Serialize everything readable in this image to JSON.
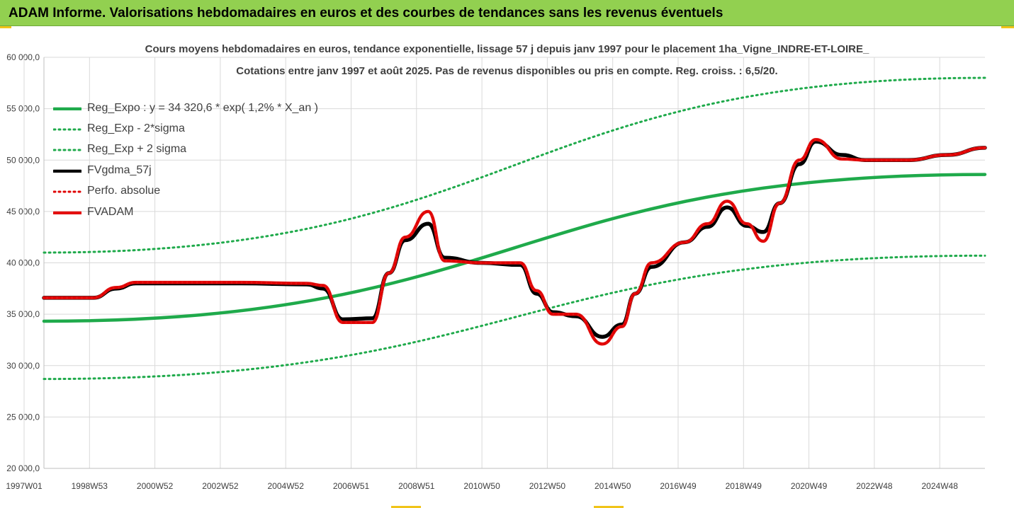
{
  "header": {
    "title": "ADAM Informe. Valorisations hebdomadaires en euros et des courbes de tendances sans les revenus éventuels"
  },
  "colors": {
    "header_bg": "#92d050",
    "trend": "#1faa4b",
    "trend_band": "#1faa4b",
    "smoothed": "#000000",
    "perf": "#e00000",
    "fvadam": "#e31010",
    "grid": "#d9d9d9"
  },
  "chart_data": {
    "type": "line",
    "title": "Cours moyens hebdomadaires en euros, tendance exponentielle, lissage 57 j depuis janv 1997 pour le placement 1ha_Vigne_INDRE-ET-LOIRE_",
    "subtitle": "Cotations entre janv 1997 et août 2025.  Pas de revenus disponibles ou pris en compte. Reg. croiss. : 6,5/20.",
    "xlabel": "",
    "ylabel": "",
    "ylim": [
      20000,
      60000
    ],
    "yticks": [
      "60 000,0",
      "55 000,0",
      "50 000,0",
      "45 000,0",
      "40 000,0",
      "35 000,0",
      "30 000,0",
      "25 000,0",
      "20 000,0"
    ],
    "xticks": [
      "1997W01",
      "1998W53",
      "2000W52",
      "2002W52",
      "2004W52",
      "2006W51",
      "2008W51",
      "2010W50",
      "2012W50",
      "2014W50",
      "2016W49",
      "2018W49",
      "2020W49",
      "2022W48",
      "2024W48"
    ],
    "xlim": [
      1997.0,
      2025.65
    ],
    "grid": true,
    "legend_position": "top-left",
    "series": [
      {
        "name": "Reg_Expo : y = 34 320,6 * exp( 1,2% *  X_an )",
        "style": "solid-thick",
        "color": "#1faa4b",
        "x": [
          1997.0,
          2025.65
        ],
        "y": [
          34320,
          48600
        ]
      },
      {
        "name": "Reg_Exp - 2*sigma",
        "style": "dotted",
        "color": "#1faa4b",
        "x": [
          1997.0,
          2025.65
        ],
        "y": [
          28700,
          40700
        ]
      },
      {
        "name": "Reg_Exp + 2 sigma",
        "style": "dotted",
        "color": "#1faa4b",
        "x": [
          1997.0,
          2025.65
        ],
        "y": [
          41000,
          58000
        ]
      },
      {
        "name": "FVgdma_57j",
        "style": "solid",
        "color": "#000000",
        "x": [
          1997.0,
          1998.5,
          1999.2,
          1999.8,
          2003.0,
          2005.0,
          2005.5,
          2006.1,
          2007.0,
          2007.5,
          2008.0,
          2008.7,
          2009.2,
          2010.3,
          2011.5,
          2012.0,
          2012.5,
          2013.2,
          2014.0,
          2014.6,
          2015.0,
          2015.5,
          2016.5,
          2017.2,
          2017.8,
          2018.4,
          2018.9,
          2019.4,
          2020.0,
          2020.5,
          2021.3,
          2022.0,
          2023.3,
          2024.5,
          2025.65
        ],
        "y": [
          36600,
          36600,
          37500,
          38000,
          38000,
          37900,
          37500,
          34500,
          34600,
          39000,
          42200,
          43800,
          40500,
          40000,
          39800,
          37000,
          35200,
          34800,
          32800,
          34000,
          37000,
          39600,
          42000,
          43500,
          45400,
          43600,
          43000,
          45800,
          49600,
          51800,
          50500,
          50000,
          50000,
          50500,
          51200
        ]
      },
      {
        "name": "Perfo. absolue",
        "style": "dotted",
        "color": "#e00000",
        "x": [
          1997.0,
          1998.5,
          1999.2,
          1999.8,
          2003.0,
          2005.0,
          2005.5,
          2006.1,
          2007.0,
          2007.5,
          2008.0,
          2008.7,
          2009.2,
          2010.3,
          2011.5,
          2012.0,
          2012.5,
          2013.2,
          2014.0,
          2014.6,
          2015.0,
          2015.5,
          2016.5,
          2017.2,
          2017.8,
          2018.4,
          2018.9,
          2019.4,
          2020.0,
          2020.5,
          2021.3,
          2022.0,
          2023.3,
          2024.5,
          2025.65
        ],
        "y": [
          36600,
          36600,
          37600,
          38100,
          38100,
          38000,
          37800,
          34200,
          34200,
          39000,
          42500,
          45000,
          40200,
          40000,
          40000,
          37300,
          35000,
          35000,
          32100,
          33800,
          37000,
          40000,
          42000,
          43800,
          46000,
          43800,
          42100,
          45800,
          50000,
          52000,
          50100,
          50000,
          50000,
          50500,
          51200
        ]
      },
      {
        "name": "FVADAM",
        "style": "solid-thick",
        "color": "#e31010",
        "x": [
          1997.0,
          1998.5,
          1999.2,
          1999.8,
          2003.0,
          2005.0,
          2005.5,
          2006.1,
          2007.0,
          2007.5,
          2008.0,
          2008.7,
          2009.2,
          2010.3,
          2011.5,
          2012.0,
          2012.5,
          2013.2,
          2014.0,
          2014.6,
          2015.0,
          2015.5,
          2016.5,
          2017.2,
          2017.8,
          2018.4,
          2018.9,
          2019.4,
          2020.0,
          2020.5,
          2021.3,
          2022.0,
          2023.3,
          2024.5,
          2025.65
        ],
        "y": [
          36600,
          36600,
          37600,
          38100,
          38100,
          38000,
          37800,
          34200,
          34200,
          39000,
          42500,
          45000,
          40200,
          40000,
          40000,
          37300,
          35000,
          35000,
          32100,
          33800,
          37000,
          40000,
          42000,
          43800,
          46000,
          43800,
          42100,
          45800,
          50000,
          52000,
          50100,
          50000,
          50000,
          50500,
          51200
        ]
      }
    ]
  }
}
